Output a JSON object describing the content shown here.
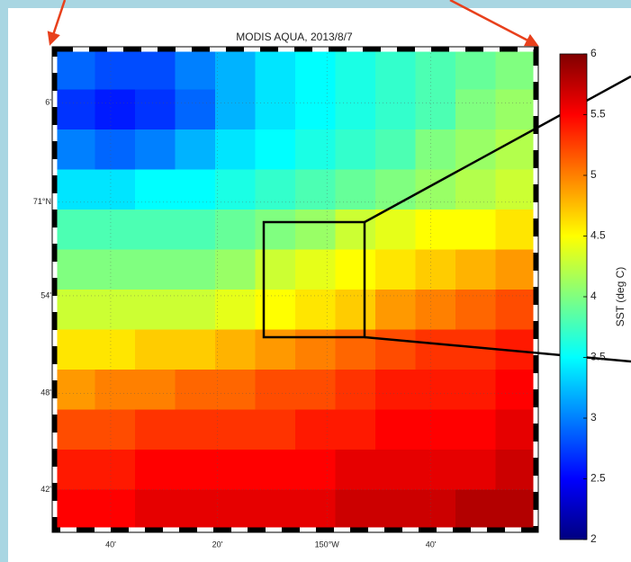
{
  "chart_data": {
    "type": "heatmap",
    "title": "MODIS AQUA, 2013/8/7",
    "colormap": "jet",
    "colorbar_label": "SST (deg C)",
    "clim": [
      2,
      6
    ],
    "cticks": [
      2,
      2.5,
      3,
      3.5,
      4,
      4.5,
      5,
      5.5,
      6
    ],
    "x_labels": [
      "40'",
      "20'",
      "150°W",
      "40'"
    ],
    "y_labels": [
      "6'",
      "71°N",
      "54'",
      "48'",
      "42'"
    ],
    "grid": true,
    "values": [
      [
        2.9,
        2.8,
        2.8,
        3.0,
        3.2,
        3.4,
        3.5,
        3.6,
        3.7,
        3.8,
        3.9,
        4.0
      ],
      [
        2.7,
        2.6,
        2.7,
        2.9,
        3.2,
        3.4,
        3.5,
        3.6,
        3.7,
        3.8,
        4.0,
        4.1
      ],
      [
        3.0,
        2.9,
        3.0,
        3.2,
        3.4,
        3.5,
        3.6,
        3.7,
        3.8,
        4.0,
        4.1,
        4.2
      ],
      [
        3.4,
        3.4,
        3.5,
        3.5,
        3.6,
        3.7,
        3.8,
        3.9,
        4.0,
        4.1,
        4.2,
        4.3
      ],
      [
        3.8,
        3.8,
        3.8,
        3.8,
        3.9,
        4.0,
        4.1,
        4.3,
        4.4,
        4.5,
        4.5,
        4.6
      ],
      [
        4.0,
        4.0,
        4.0,
        4.0,
        4.1,
        4.3,
        4.4,
        4.5,
        4.6,
        4.7,
        4.8,
        4.9
      ],
      [
        4.3,
        4.3,
        4.3,
        4.3,
        4.4,
        4.5,
        4.6,
        4.7,
        4.9,
        5.0,
        5.1,
        5.2
      ],
      [
        4.6,
        4.6,
        4.7,
        4.7,
        4.8,
        4.9,
        5.0,
        5.1,
        5.2,
        5.3,
        5.3,
        5.4
      ],
      [
        4.9,
        5.0,
        5.0,
        5.1,
        5.1,
        5.2,
        5.2,
        5.3,
        5.4,
        5.4,
        5.4,
        5.5
      ],
      [
        5.2,
        5.2,
        5.3,
        5.3,
        5.3,
        5.3,
        5.4,
        5.4,
        5.5,
        5.5,
        5.5,
        5.6
      ],
      [
        5.4,
        5.4,
        5.5,
        5.5,
        5.5,
        5.5,
        5.5,
        5.6,
        5.6,
        5.6,
        5.6,
        5.7
      ],
      [
        5.5,
        5.5,
        5.6,
        5.6,
        5.6,
        5.6,
        5.6,
        5.7,
        5.7,
        5.7,
        5.8,
        5.8
      ]
    ]
  }
}
